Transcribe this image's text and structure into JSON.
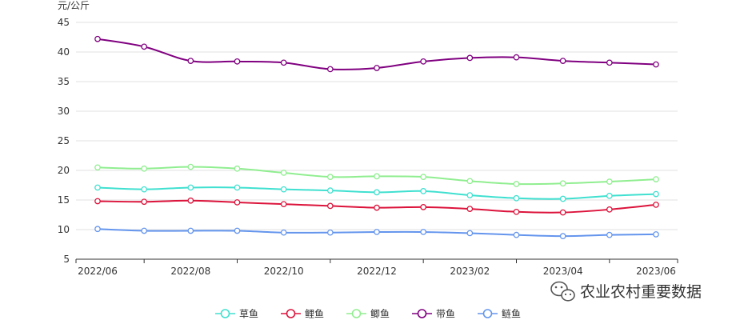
{
  "chart_data": {
    "type": "line",
    "y_unit": "元/公斤",
    "ylim": [
      5,
      45
    ],
    "y_ticks": [
      5,
      10,
      15,
      20,
      25,
      30,
      35,
      40,
      45
    ],
    "x": [
      "2022/06",
      "2022/07",
      "2022/08",
      "2022/09",
      "2022/10",
      "2022/11",
      "2022/12",
      "2023/01",
      "2023/02",
      "2023/03",
      "2023/04",
      "2023/05",
      "2023/06"
    ],
    "x_tick_labels": [
      "2022/06",
      "2022/08",
      "2022/10",
      "2022/12",
      "2023/02",
      "2023/04",
      "2023/06"
    ],
    "grid": true,
    "smooth": true,
    "legend_position": "bottom-center",
    "series": [
      {
        "name": "草鱼",
        "color": "#40e0d0",
        "values": [
          17.1,
          16.8,
          17.1,
          17.1,
          16.8,
          16.6,
          16.3,
          16.5,
          15.8,
          15.3,
          15.2,
          15.7,
          16.0
        ]
      },
      {
        "name": "鲤鱼",
        "color": "#dc143c",
        "values": [
          14.8,
          14.7,
          14.9,
          14.6,
          14.3,
          14.0,
          13.7,
          13.8,
          13.5,
          13.0,
          12.9,
          13.4,
          14.2
        ]
      },
      {
        "name": "鲫鱼",
        "color": "#90ee90",
        "values": [
          20.5,
          20.3,
          20.6,
          20.3,
          19.6,
          18.9,
          19.0,
          18.9,
          18.2,
          17.7,
          17.8,
          18.1,
          18.5
        ]
      },
      {
        "name": "带鱼",
        "color": "#800080",
        "values": [
          42.2,
          40.9,
          38.5,
          38.4,
          38.2,
          37.1,
          37.3,
          38.4,
          39.0,
          39.1,
          38.5,
          38.2,
          37.9
        ]
      },
      {
        "name": "鲢鱼",
        "color": "#6495ed",
        "values": [
          10.1,
          9.8,
          9.8,
          9.8,
          9.5,
          9.5,
          9.6,
          9.6,
          9.4,
          9.1,
          8.9,
          9.1,
          9.2
        ]
      }
    ]
  },
  "watermark": {
    "text": "农业农村重要数据",
    "icon": "wechat-icon"
  }
}
